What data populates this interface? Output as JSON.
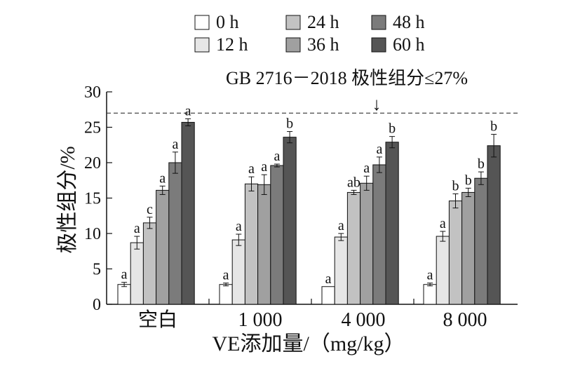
{
  "chart_data": {
    "type": "bar",
    "title": "",
    "xlabel": "VE添加量/（mg/kg）",
    "ylabel": "极性组分/%",
    "ylim": [
      0,
      30
    ],
    "yticks": [
      0,
      5,
      10,
      15,
      20,
      25,
      30
    ],
    "grid": false,
    "legend_position": "top",
    "categories": [
      "空白",
      "1 000",
      "4 000",
      "8 000"
    ],
    "series": [
      {
        "name": "0 h",
        "color": "#ffffff",
        "values": [
          2.8,
          2.8,
          2.5,
          2.8
        ],
        "errors": [
          0.3,
          0.2,
          0.0,
          0.2
        ],
        "labels": [
          "a",
          "a",
          "a",
          "a"
        ]
      },
      {
        "name": "12 h",
        "color": "#e6e6e6",
        "values": [
          8.7,
          9.1,
          9.5,
          9.6
        ],
        "errors": [
          0.9,
          0.8,
          0.5,
          0.7
        ],
        "labels": [
          "a",
          "a",
          "a",
          "a"
        ]
      },
      {
        "name": "24 h",
        "color": "#c2c2c2",
        "values": [
          11.5,
          17.0,
          15.8,
          14.6
        ],
        "errors": [
          0.8,
          1.0,
          0.3,
          1.0
        ],
        "labels": [
          "c",
          "a",
          "ab",
          "b"
        ]
      },
      {
        "name": "36 h",
        "color": "#a0a0a0",
        "values": [
          16.1,
          16.9,
          17.1,
          15.8
        ],
        "errors": [
          0.6,
          1.4,
          1.0,
          0.6
        ],
        "labels": [
          "a",
          "a",
          "a",
          "b"
        ]
      },
      {
        "name": "48 h",
        "color": "#7b7b7b",
        "values": [
          20.0,
          19.6,
          19.7,
          17.8
        ],
        "errors": [
          1.5,
          0.2,
          1.1,
          0.9
        ],
        "labels": [
          "a",
          "a",
          "a",
          "b"
        ]
      },
      {
        "name": "60 h",
        "color": "#555555",
        "values": [
          25.7,
          23.6,
          22.9,
          22.4
        ],
        "errors": [
          0.5,
          0.8,
          0.8,
          1.6
        ],
        "labels": [
          "a",
          "b",
          "b",
          "b"
        ]
      }
    ],
    "reference_line": {
      "value": 27,
      "label": "GB 2716－2018 极性组分≤27%",
      "arrow_glyph": "↓"
    }
  }
}
